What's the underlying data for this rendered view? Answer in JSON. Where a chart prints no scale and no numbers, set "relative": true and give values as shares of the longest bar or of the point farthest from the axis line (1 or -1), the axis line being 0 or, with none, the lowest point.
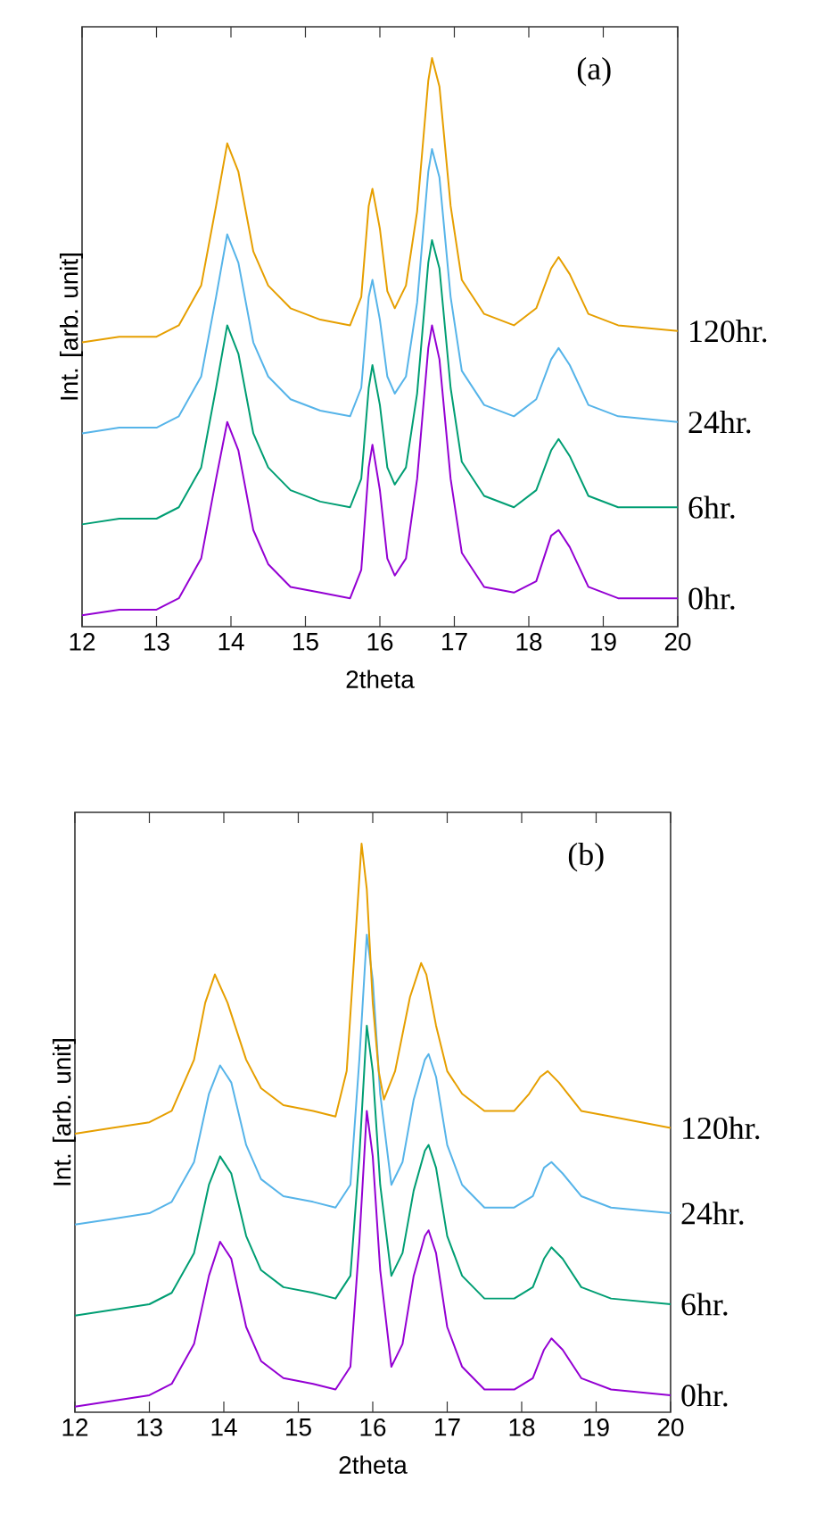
{
  "chart_data": [
    {
      "type": "line",
      "xlabel": "2theta",
      "ylabel": "Int. [arb. unit]",
      "annotations": [
        "(a)"
      ],
      "relative": true,
      "xlim": [
        12,
        20
      ],
      "xticks": [
        12,
        13,
        14,
        15,
        16,
        17,
        18,
        19,
        20
      ],
      "x": [
        12,
        12.5,
        13,
        13.3,
        13.6,
        13.8,
        13.95,
        14.1,
        14.3,
        14.5,
        14.8,
        15.2,
        15.6,
        15.75,
        15.85,
        15.9,
        16.0,
        16.1,
        16.2,
        16.35,
        16.5,
        16.65,
        16.7,
        16.8,
        16.95,
        17.1,
        17.4,
        17.8,
        18.1,
        18.3,
        18.4,
        18.55,
        18.8,
        19.2,
        20
      ],
      "series": [
        {
          "name": "0hr.",
          "color": "#9400d3",
          "values": [
            0.02,
            0.03,
            0.03,
            0.05,
            0.12,
            0.26,
            0.36,
            0.31,
            0.17,
            0.11,
            0.07,
            0.06,
            0.05,
            0.1,
            0.28,
            0.32,
            0.24,
            0.12,
            0.09,
            0.12,
            0.26,
            0.49,
            0.53,
            0.47,
            0.26,
            0.13,
            0.07,
            0.06,
            0.08,
            0.16,
            0.17,
            0.14,
            0.07,
            0.05,
            0.05
          ]
        },
        {
          "name": "6hr.",
          "color": "#009e73",
          "values": [
            0.18,
            0.19,
            0.19,
            0.21,
            0.28,
            0.42,
            0.53,
            0.48,
            0.34,
            0.28,
            0.24,
            0.22,
            0.21,
            0.26,
            0.42,
            0.46,
            0.39,
            0.28,
            0.25,
            0.28,
            0.41,
            0.64,
            0.68,
            0.63,
            0.42,
            0.29,
            0.23,
            0.21,
            0.24,
            0.31,
            0.33,
            0.3,
            0.23,
            0.21,
            0.21
          ]
        },
        {
          "name": "24hr.",
          "color": "#56b4e9",
          "values": [
            0.34,
            0.35,
            0.35,
            0.37,
            0.44,
            0.58,
            0.69,
            0.64,
            0.5,
            0.44,
            0.4,
            0.38,
            0.37,
            0.42,
            0.58,
            0.61,
            0.54,
            0.44,
            0.41,
            0.44,
            0.57,
            0.8,
            0.84,
            0.79,
            0.58,
            0.45,
            0.39,
            0.37,
            0.4,
            0.47,
            0.49,
            0.46,
            0.39,
            0.37,
            0.36
          ]
        },
        {
          "name": "120hr.",
          "color": "#e69f00",
          "values": [
            0.5,
            0.51,
            0.51,
            0.53,
            0.6,
            0.74,
            0.85,
            0.8,
            0.66,
            0.6,
            0.56,
            0.54,
            0.53,
            0.58,
            0.74,
            0.77,
            0.7,
            0.59,
            0.56,
            0.6,
            0.73,
            0.96,
            1.0,
            0.95,
            0.74,
            0.61,
            0.55,
            0.53,
            0.56,
            0.63,
            0.65,
            0.62,
            0.55,
            0.53,
            0.52
          ]
        }
      ]
    },
    {
      "type": "line",
      "xlabel": "2theta",
      "ylabel": "Int. [arb. unit]",
      "annotations": [
        "(b)"
      ],
      "relative": true,
      "xlim": [
        12,
        20
      ],
      "xticks": [
        12,
        13,
        14,
        15,
        16,
        17,
        18,
        19,
        20
      ],
      "x": [
        12,
        12.5,
        13,
        13.3,
        13.6,
        13.8,
        13.95,
        14.1,
        14.3,
        14.5,
        14.8,
        15.2,
        15.5,
        15.7,
        15.82,
        15.92,
        16.0,
        16.1,
        16.25,
        16.4,
        16.55,
        16.7,
        16.75,
        16.85,
        17.0,
        17.2,
        17.5,
        17.9,
        18.15,
        18.3,
        18.4,
        18.55,
        18.8,
        19.2,
        20
      ],
      "series": [
        {
          "name": "0hr.",
          "color": "#9400d3",
          "values": [
            0.01,
            0.02,
            0.03,
            0.05,
            0.12,
            0.24,
            0.3,
            0.27,
            0.15,
            0.09,
            0.06,
            0.05,
            0.04,
            0.08,
            0.3,
            0.53,
            0.45,
            0.25,
            0.08,
            0.12,
            0.24,
            0.31,
            0.32,
            0.28,
            0.15,
            0.08,
            0.04,
            0.04,
            0.06,
            0.11,
            0.13,
            0.11,
            0.06,
            0.04,
            0.03
          ]
        },
        {
          "name": "6hr.",
          "color": "#009e73",
          "values": [
            0.17,
            0.18,
            0.19,
            0.21,
            0.28,
            0.4,
            0.45,
            0.42,
            0.31,
            0.25,
            0.22,
            0.21,
            0.2,
            0.24,
            0.45,
            0.68,
            0.6,
            0.4,
            0.24,
            0.28,
            0.39,
            0.46,
            0.47,
            0.43,
            0.31,
            0.24,
            0.2,
            0.2,
            0.22,
            0.27,
            0.29,
            0.27,
            0.22,
            0.2,
            0.19
          ]
        },
        {
          "name": "24hr.",
          "color": "#56b4e9",
          "values": [
            0.33,
            0.34,
            0.35,
            0.37,
            0.44,
            0.56,
            0.61,
            0.58,
            0.47,
            0.41,
            0.38,
            0.37,
            0.36,
            0.4,
            0.62,
            0.84,
            0.76,
            0.56,
            0.4,
            0.44,
            0.55,
            0.62,
            0.63,
            0.59,
            0.47,
            0.4,
            0.36,
            0.36,
            0.38,
            0.43,
            0.44,
            0.42,
            0.38,
            0.36,
            0.35
          ]
        },
        {
          "name": "120hr.",
          "color": "#e69f00",
          "x": [
            12,
            12.5,
            13,
            13.3,
            13.6,
            13.75,
            13.88,
            14.05,
            14.3,
            14.5,
            14.8,
            15.2,
            15.5,
            15.65,
            15.85,
            15.92,
            16.0,
            16.08,
            16.15,
            16.3,
            16.5,
            16.65,
            16.72,
            16.85,
            17.0,
            17.2,
            17.5,
            17.9,
            18.1,
            18.25,
            18.35,
            18.5,
            18.8,
            19.2,
            20
          ],
          "values": [
            0.49,
            0.5,
            0.51,
            0.53,
            0.62,
            0.72,
            0.77,
            0.72,
            0.62,
            0.57,
            0.54,
            0.53,
            0.52,
            0.6,
            1.0,
            0.92,
            0.72,
            0.6,
            0.55,
            0.6,
            0.73,
            0.79,
            0.77,
            0.68,
            0.6,
            0.56,
            0.53,
            0.53,
            0.56,
            0.59,
            0.6,
            0.58,
            0.53,
            0.52,
            0.5
          ]
        }
      ]
    }
  ]
}
